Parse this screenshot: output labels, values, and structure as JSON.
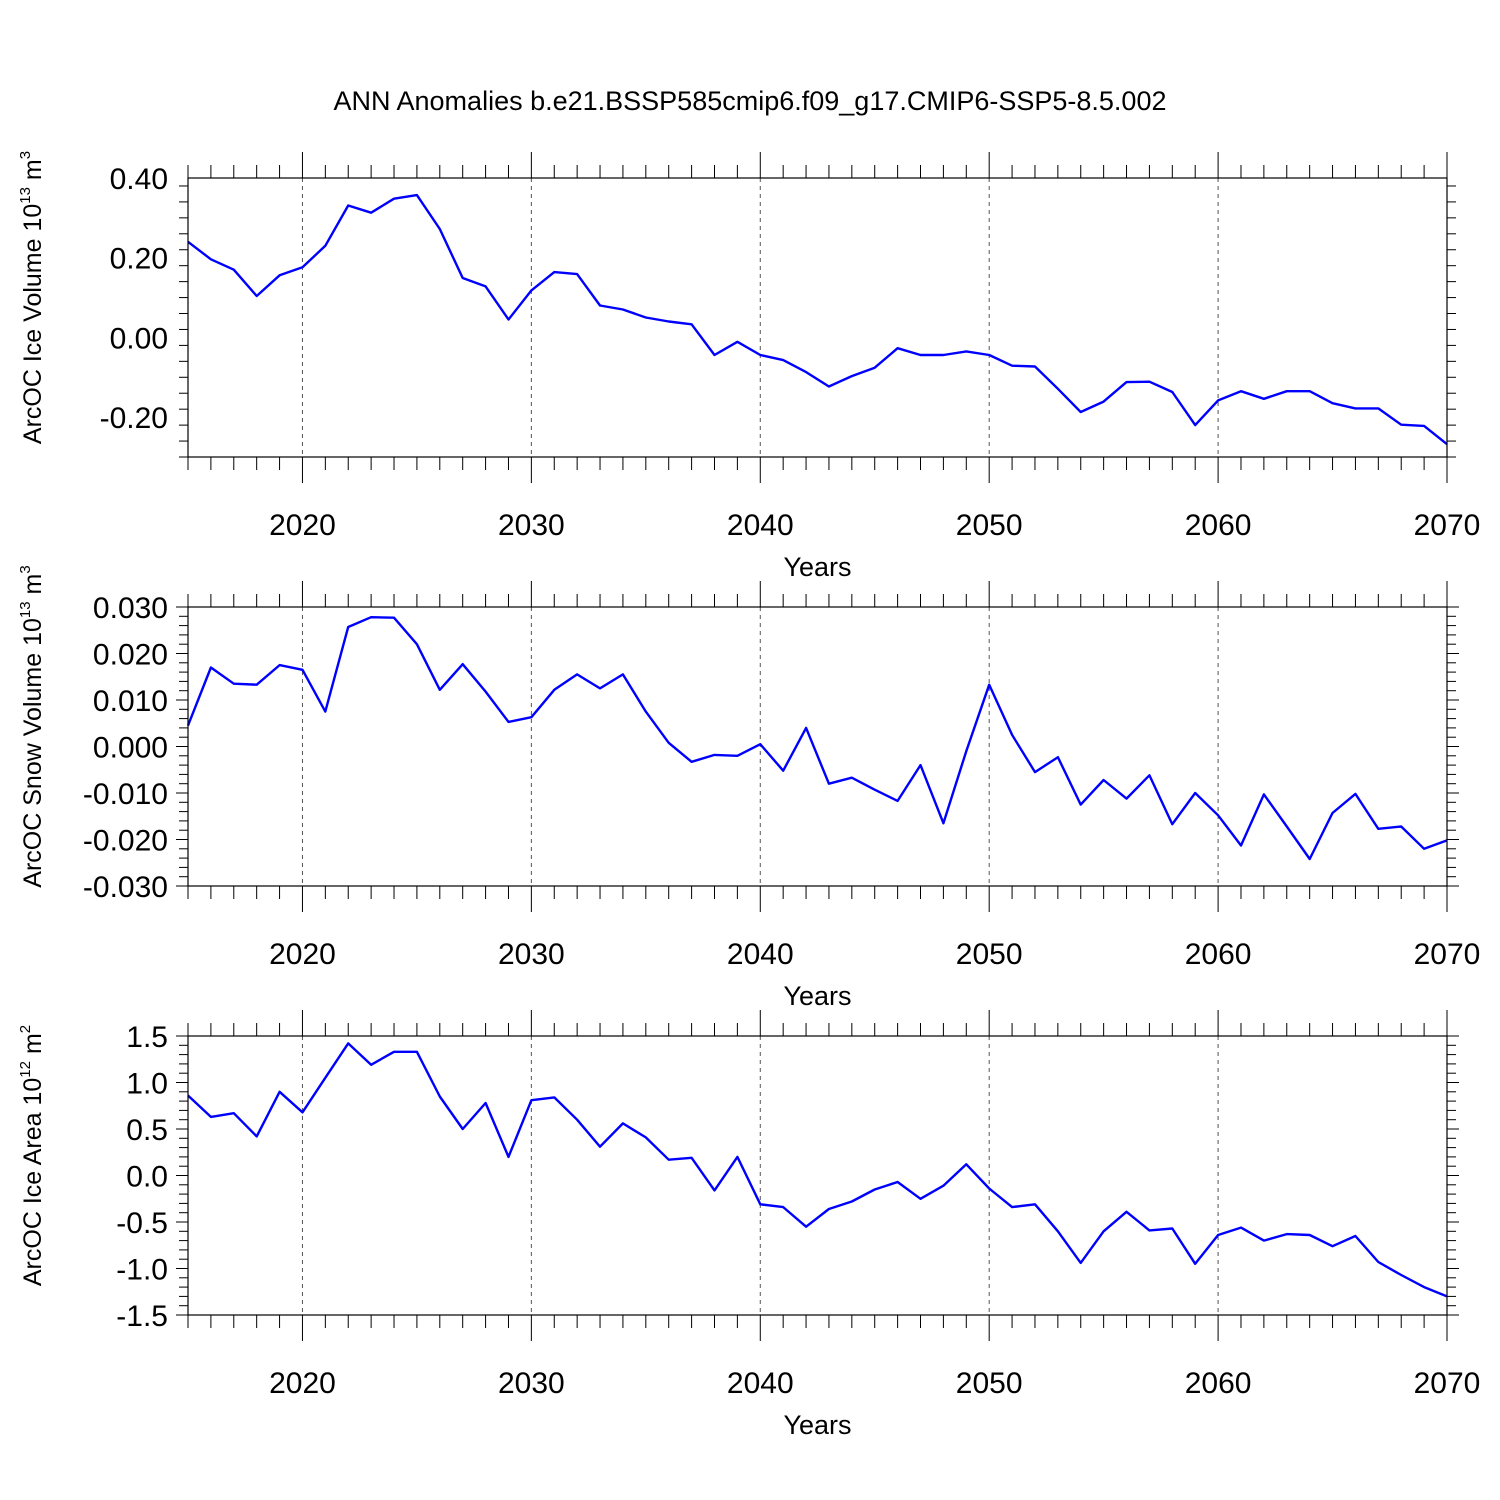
{
  "title": "ANN Anomalies b.e21.BSSP585cmip6.f09_g17.CMIP6-SSP5-8.5.002",
  "chart_data": [
    {
      "type": "line",
      "ylabel": "ArcOC Ice Volume 10",
      "ylabel_exp": "13",
      "ylabel_unit": " m",
      "ylabel_unit_exp": "3",
      "xlabel": "Years",
      "xlim": [
        2015,
        2070
      ],
      "ylim": [
        -0.3,
        0.4
      ],
      "yticks": [
        -0.2,
        0.0,
        0.2,
        0.4
      ],
      "ytick_labels": [
        "-0.20",
        "0.00",
        "0.20",
        "0.40"
      ],
      "xticks": [
        2020,
        2030,
        2040,
        2050,
        2060,
        2070
      ],
      "xtick_labels": [
        "2020",
        "2030",
        "2040",
        "2050",
        "2060",
        "2070"
      ],
      "grid": "dashed vertical at major x ticks",
      "series": [
        {
          "color": "#0000ff",
          "x": [
            2015,
            2016,
            2017,
            2018,
            2019,
            2020,
            2021,
            2022,
            2023,
            2024,
            2025,
            2026,
            2027,
            2028,
            2029,
            2030,
            2031,
            2032,
            2033,
            2034,
            2035,
            2036,
            2037,
            2038,
            2039,
            2040,
            2041,
            2042,
            2043,
            2044,
            2045,
            2046,
            2047,
            2048,
            2049,
            2050,
            2051,
            2052,
            2053,
            2054,
            2055,
            2056,
            2057,
            2058,
            2059,
            2060,
            2061,
            2062,
            2063,
            2064,
            2065,
            2066,
            2067,
            2068,
            2069,
            2070
          ],
          "values": [
            0.24,
            0.196,
            0.17,
            0.104,
            0.156,
            0.176,
            0.23,
            0.331,
            0.313,
            0.348,
            0.357,
            0.272,
            0.149,
            0.128,
            0.045,
            0.118,
            0.164,
            0.159,
            0.08,
            0.07,
            0.05,
            0.04,
            0.033,
            -0.044,
            -0.011,
            -0.044,
            -0.057,
            -0.087,
            -0.123,
            -0.097,
            -0.076,
            -0.027,
            -0.044,
            -0.044,
            -0.035,
            -0.044,
            -0.071,
            -0.073,
            -0.129,
            -0.187,
            -0.161,
            -0.112,
            -0.111,
            -0.137,
            -0.22,
            -0.158,
            -0.135,
            -0.154,
            -0.135,
            -0.135,
            -0.165,
            -0.178,
            -0.178,
            -0.219,
            -0.222,
            -0.268
          ]
        }
      ]
    },
    {
      "type": "line",
      "ylabel": "ArcOC Snow Volume 10",
      "ylabel_exp": "13",
      "ylabel_unit": " m",
      "ylabel_unit_exp": "3",
      "xlabel": "Years",
      "xlim": [
        2015,
        2070
      ],
      "ylim": [
        -0.03,
        0.03
      ],
      "yticks": [
        -0.03,
        -0.02,
        -0.01,
        0.0,
        0.01,
        0.02,
        0.03
      ],
      "ytick_labels": [
        "-0.030",
        "-0.020",
        "-0.010",
        "0.000",
        "0.010",
        "0.020",
        "0.030"
      ],
      "xticks": [
        2020,
        2030,
        2040,
        2050,
        2060,
        2070
      ],
      "xtick_labels": [
        "2020",
        "2030",
        "2040",
        "2050",
        "2060",
        "2070"
      ],
      "grid": "dashed vertical at major x ticks",
      "series": [
        {
          "color": "#0000ff",
          "x": [
            2015,
            2016,
            2017,
            2018,
            2019,
            2020,
            2021,
            2022,
            2023,
            2024,
            2025,
            2026,
            2027,
            2028,
            2029,
            2030,
            2031,
            2032,
            2033,
            2034,
            2035,
            2036,
            2037,
            2038,
            2039,
            2040,
            2041,
            2042,
            2043,
            2044,
            2045,
            2046,
            2047,
            2048,
            2049,
            2050,
            2051,
            2052,
            2053,
            2054,
            2055,
            2056,
            2057,
            2058,
            2059,
            2060,
            2061,
            2062,
            2063,
            2064,
            2065,
            2066,
            2067,
            2068,
            2069,
            2070
          ],
          "values": [
            0.0045,
            0.017,
            0.0135,
            0.0133,
            0.0175,
            0.0165,
            0.0075,
            0.0257,
            0.0278,
            0.0277,
            0.022,
            0.0122,
            0.0177,
            0.0118,
            0.0053,
            0.0063,
            0.0122,
            0.0155,
            0.0125,
            0.0155,
            0.0075,
            0.0008,
            -0.0033,
            -0.0018,
            -0.002,
            0.0005,
            -0.0052,
            0.004,
            -0.008,
            -0.0067,
            -0.0093,
            -0.0117,
            -0.004,
            -0.0165,
            -0.001,
            0.0133,
            0.0025,
            -0.0055,
            -0.0023,
            -0.0125,
            -0.0072,
            -0.0112,
            -0.0062,
            -0.0167,
            -0.01,
            -0.0148,
            -0.0213,
            -0.0103,
            -0.0172,
            -0.0242,
            -0.0143,
            -0.0102,
            -0.0177,
            -0.0172,
            -0.022,
            -0.0202
          ]
        }
      ]
    },
    {
      "type": "line",
      "ylabel": "ArcOC Ice Area 10",
      "ylabel_exp": "12",
      "ylabel_unit": " m",
      "ylabel_unit_exp": "2",
      "xlabel": "Years",
      "xlim": [
        2015,
        2070
      ],
      "ylim": [
        -1.5,
        1.5
      ],
      "yticks": [
        -1.5,
        -1.0,
        -0.5,
        0.0,
        0.5,
        1.0,
        1.5
      ],
      "ytick_labels": [
        "-1.5",
        "-1.0",
        "-0.5",
        "0.0",
        "0.5",
        "1.0",
        "1.5"
      ],
      "xticks": [
        2020,
        2030,
        2040,
        2050,
        2060,
        2070
      ],
      "xtick_labels": [
        "2020",
        "2030",
        "2040",
        "2050",
        "2060",
        "2070"
      ],
      "grid": "dashed vertical at major x ticks",
      "series": [
        {
          "color": "#0000ff",
          "x": [
            2015,
            2016,
            2017,
            2018,
            2019,
            2020,
            2021,
            2022,
            2023,
            2024,
            2025,
            2026,
            2027,
            2028,
            2029,
            2030,
            2031,
            2032,
            2033,
            2034,
            2035,
            2036,
            2037,
            2038,
            2039,
            2040,
            2041,
            2042,
            2043,
            2044,
            2045,
            2046,
            2047,
            2048,
            2049,
            2050,
            2051,
            2052,
            2053,
            2054,
            2055,
            2056,
            2057,
            2058,
            2059,
            2060,
            2061,
            2062,
            2063,
            2064,
            2065,
            2066,
            2067,
            2068,
            2069,
            2070
          ],
          "values": [
            0.86,
            0.63,
            0.67,
            0.42,
            0.9,
            0.68,
            1.05,
            1.42,
            1.19,
            1.33,
            1.33,
            0.85,
            0.5,
            0.78,
            0.2,
            0.81,
            0.84,
            0.6,
            0.31,
            0.56,
            0.41,
            0.17,
            0.19,
            -0.16,
            0.2,
            -0.31,
            -0.34,
            -0.55,
            -0.36,
            -0.28,
            -0.15,
            -0.07,
            -0.25,
            -0.11,
            0.12,
            -0.14,
            -0.34,
            -0.31,
            -0.6,
            -0.94,
            -0.6,
            -0.39,
            -0.59,
            -0.57,
            -0.95,
            -0.64,
            -0.56,
            -0.7,
            -0.63,
            -0.64,
            -0.76,
            -0.65,
            -0.93,
            -1.07,
            -1.2,
            -1.3
          ]
        }
      ]
    }
  ]
}
